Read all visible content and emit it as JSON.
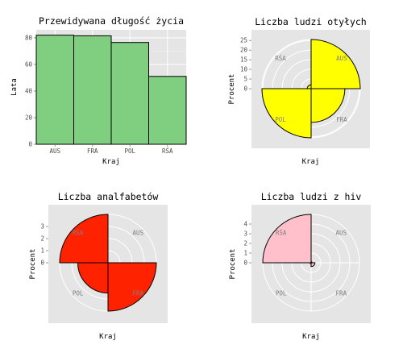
{
  "chart_data": [
    {
      "type": "bar",
      "title": "Przewidywana długość życia",
      "xlabel": "Kraj",
      "ylabel": "Lata",
      "categories": [
        "AUS",
        "FRA",
        "POL",
        "RŚA"
      ],
      "values": [
        82,
        81.5,
        76.5,
        51
      ],
      "ylim": [
        0,
        86
      ],
      "yticks": [
        0,
        20,
        40,
        60,
        80
      ],
      "grid": true,
      "fill": "#80cf80"
    },
    {
      "type": "pie",
      "subtype": "polar-area",
      "title": "Liczba ludzi otyłych",
      "xlabel": "Kraj",
      "ylabel": "Procent",
      "categories": [
        "AUS",
        "FRA",
        "POL",
        "RŚA"
      ],
      "values": [
        25.5,
        17.5,
        25.5,
        2
      ],
      "rlim": [
        0,
        25.5
      ],
      "yticks": [
        0,
        5,
        10,
        15,
        20,
        25
      ],
      "grid": true,
      "fill": "#ffff00"
    },
    {
      "type": "pie",
      "subtype": "polar-area",
      "title": "Liczba analfabetów",
      "xlabel": "Kraj",
      "ylabel": "Procent",
      "categories": [
        "AUS",
        "FRA",
        "POL",
        "RŚA"
      ],
      "values": [
        0,
        4,
        2.5,
        4
      ],
      "rlim": [
        0,
        4
      ],
      "yticks": [
        0,
        1,
        2,
        3
      ],
      "grid": true,
      "fill": "#ff2200"
    },
    {
      "type": "pie",
      "subtype": "polar-area",
      "title": "Liczba ludzi z hiv",
      "xlabel": "Kraj",
      "ylabel": "Procent",
      "categories": [
        "AUS",
        "FRA",
        "POL",
        "RŚA"
      ],
      "values": [
        0.1,
        0.4,
        0.1,
        5
      ],
      "rlim": [
        0,
        5
      ],
      "yticks": [
        0,
        1,
        2,
        3,
        4
      ],
      "grid": true,
      "fill": "#ffc0cb"
    }
  ]
}
